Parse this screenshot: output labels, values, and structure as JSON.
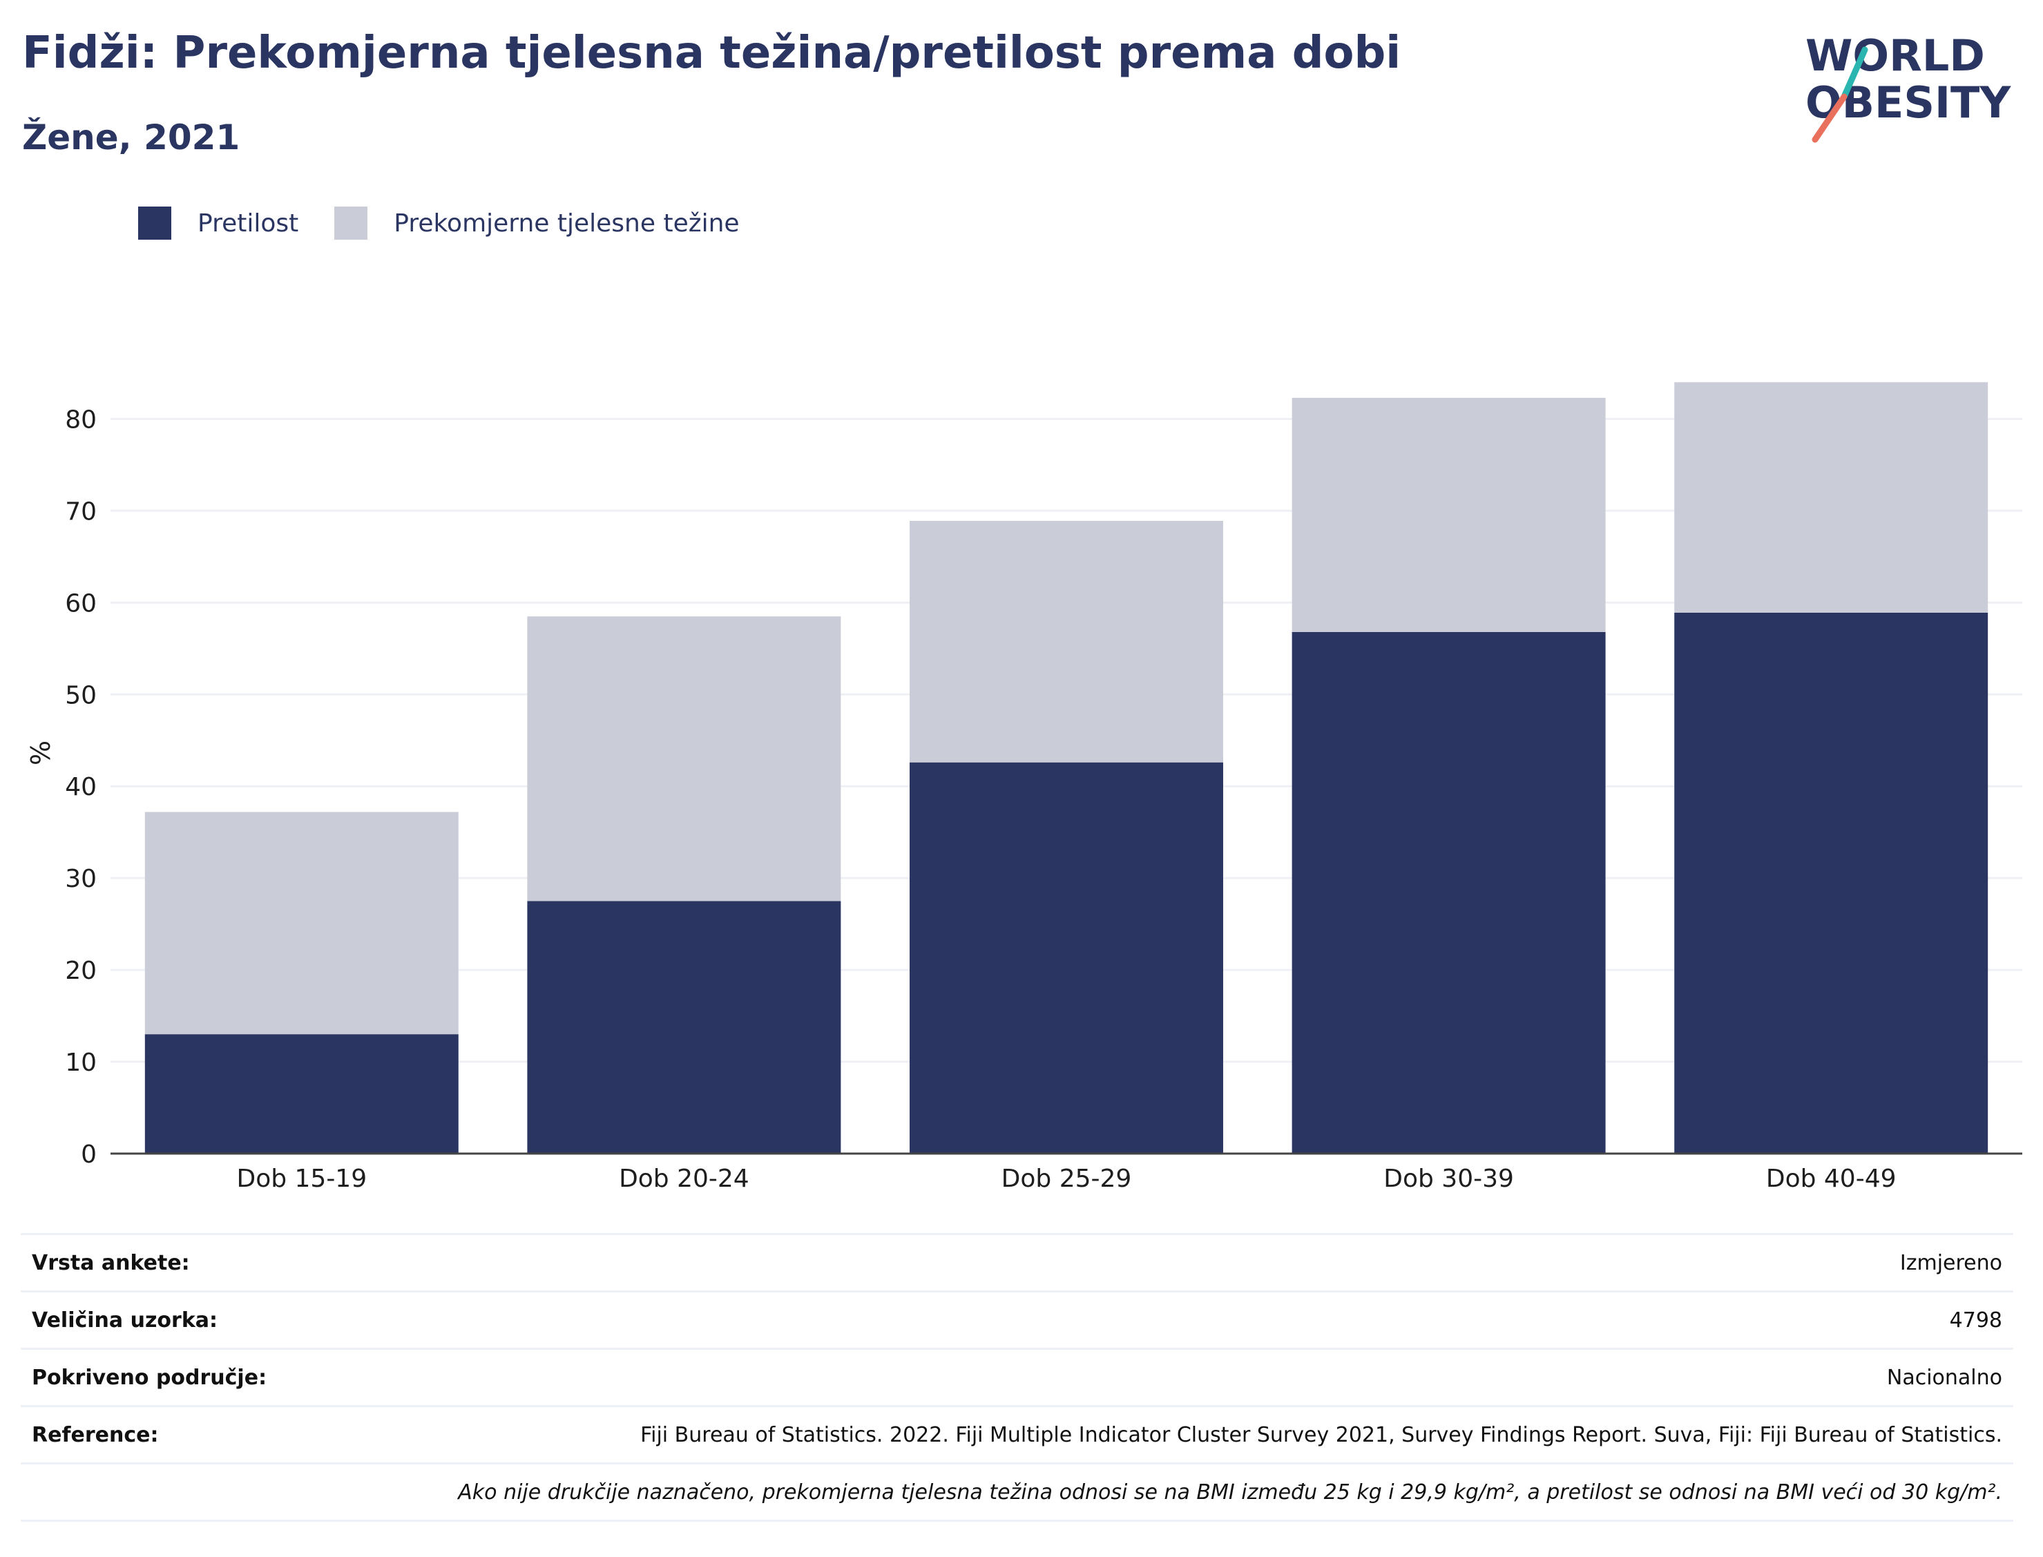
{
  "header": {
    "title": "Fidži: Prekomjerna tjelesna težina/pretilost prema dobi",
    "subtitle": "Žene, 2021"
  },
  "logo": {
    "line1": "WORLD",
    "line2": "OBESITY",
    "slash_colors": [
      "#2bb5b0",
      "#e8705c"
    ]
  },
  "colors": {
    "pretilost": "#2a3561",
    "prekomjerna": "#caccd8",
    "text": "#2a3561",
    "grid": "#eef0f5",
    "axis": "#444444"
  },
  "legend": {
    "items": [
      {
        "label": "Pretilost"
      },
      {
        "label": "Prekomjerne tjelesne težine"
      }
    ]
  },
  "chart_data": {
    "type": "bar",
    "stacked": true,
    "categories": [
      "Dob 15-19",
      "Dob 20-24",
      "Dob 25-29",
      "Dob 30-39",
      "Dob 40-49"
    ],
    "series": [
      {
        "name": "Pretilost",
        "values": [
          13.0,
          27.5,
          42.6,
          56.8,
          58.9
        ]
      },
      {
        "name": "Prekomjerne tjelesne težine",
        "values": [
          24.2,
          31.0,
          26.3,
          25.5,
          25.1
        ]
      }
    ],
    "ylabel": "%",
    "ylim": [
      0,
      85
    ],
    "yticks": [
      0,
      10,
      20,
      30,
      40,
      50,
      60,
      70,
      80
    ],
    "grid": true,
    "legend_position": "top-left"
  },
  "info": {
    "rows": [
      {
        "key": "Vrsta ankete:",
        "value": "Izmjereno"
      },
      {
        "key": "Veličina uzorka:",
        "value": "4798"
      },
      {
        "key": "Pokriveno područje:",
        "value": "Nacionalno"
      },
      {
        "key": "Reference:",
        "value": "Fiji Bureau of Statistics. 2022. Fiji Multiple Indicator Cluster Survey 2021, Survey Findings Report. Suva, Fiji: Fiji Bureau of Statistics."
      }
    ],
    "note": "Ako nije drukčije naznačeno, prekomjerna tjelesna težina odnosi se na BMI između 25 kg i 29,9 kg/m², a pretilost se odnosi na BMI veći od 30 kg/m²."
  }
}
